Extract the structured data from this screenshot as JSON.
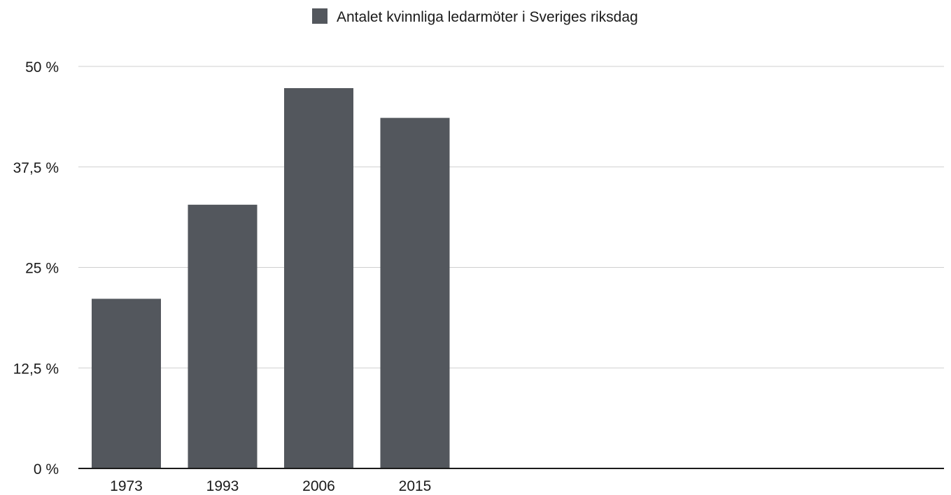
{
  "chart_data": {
    "type": "bar",
    "categories": [
      "1973",
      "1993",
      "2006",
      "2015"
    ],
    "series": [
      {
        "name": "Antalet kvinnliga ledarmöter i Sveriges riksdag",
        "values": [
          21.1,
          32.8,
          47.3,
          43.6
        ],
        "color": "#53575d"
      }
    ],
    "ylim": [
      0,
      50
    ],
    "yticks": [
      0,
      12.5,
      25,
      37.5,
      50
    ],
    "ytick_labels": [
      "0 %",
      "12,5 %",
      "25 %",
      "37,5 %",
      "50 %"
    ],
    "grid": true,
    "legend_position": "top-center"
  }
}
